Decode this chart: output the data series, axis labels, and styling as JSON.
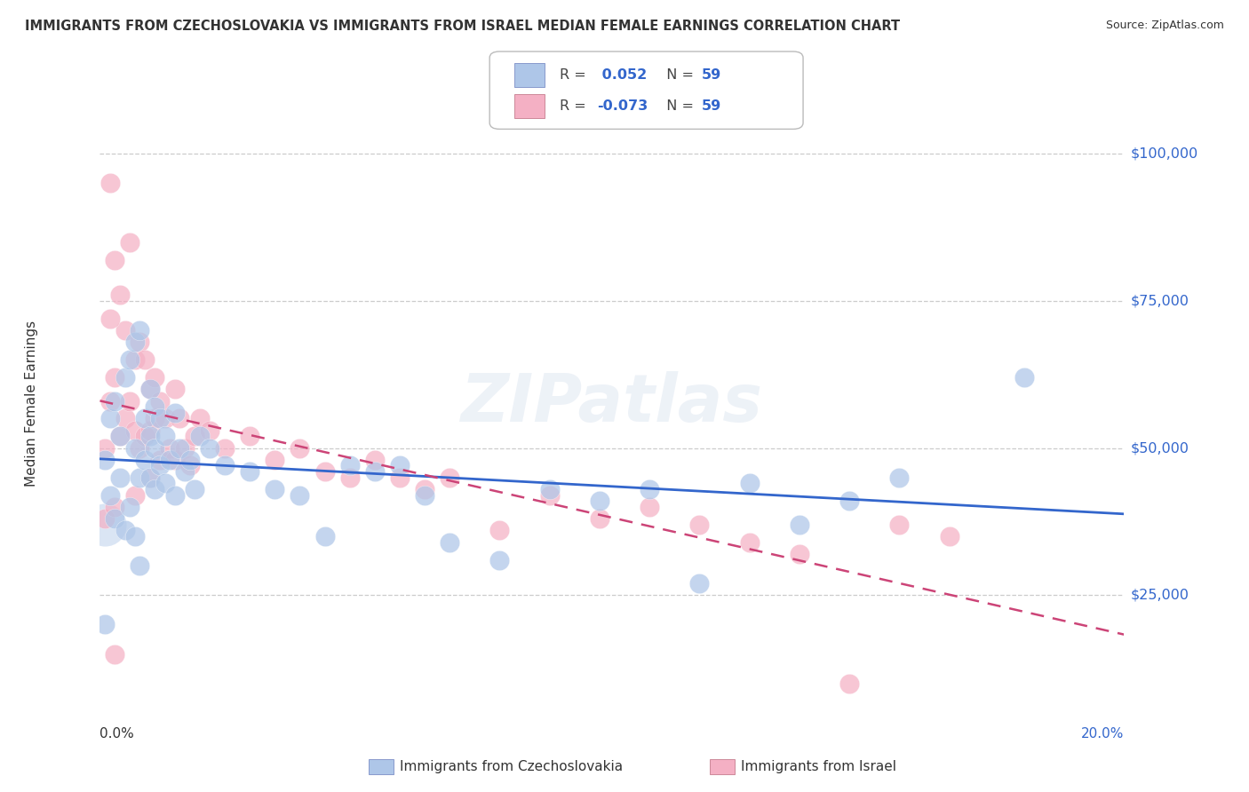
{
  "title": "IMMIGRANTS FROM CZECHOSLOVAKIA VS IMMIGRANTS FROM ISRAEL MEDIAN FEMALE EARNINGS CORRELATION CHART",
  "source": "Source: ZipAtlas.com",
  "ylabel": "Median Female Earnings",
  "yticks": [
    25000,
    50000,
    75000,
    100000
  ],
  "ytick_labels": [
    "$25,000",
    "$50,000",
    "$75,000",
    "$100,000"
  ],
  "xmin": 0.0,
  "xmax": 0.205,
  "ymin": 5000,
  "ymax": 110000,
  "legend_label1": "Immigrants from Czechoslovakia",
  "legend_label2": "Immigrants from Israel",
  "R1": "0.052",
  "R2": "-0.073",
  "N1": "59",
  "N2": "59",
  "color1": "#aec6e8",
  "color2": "#f4b0c4",
  "line_color1": "#3366cc",
  "line_color2": "#cc4477",
  "watermark": "ZIPatlas",
  "background_color": "#ffffff",
  "grid_color": "#cccccc",
  "title_color": "#333333",
  "right_label_color": "#3366cc",
  "czech_x": [
    0.001,
    0.002,
    0.002,
    0.003,
    0.003,
    0.004,
    0.004,
    0.005,
    0.005,
    0.006,
    0.006,
    0.007,
    0.007,
    0.007,
    0.008,
    0.008,
    0.008,
    0.009,
    0.009,
    0.01,
    0.01,
    0.01,
    0.011,
    0.011,
    0.011,
    0.012,
    0.012,
    0.013,
    0.013,
    0.014,
    0.015,
    0.015,
    0.016,
    0.017,
    0.018,
    0.019,
    0.02,
    0.022,
    0.025,
    0.03,
    0.035,
    0.04,
    0.045,
    0.05,
    0.055,
    0.06,
    0.065,
    0.07,
    0.08,
    0.09,
    0.1,
    0.11,
    0.12,
    0.13,
    0.14,
    0.15,
    0.16,
    0.185,
    0.001
  ],
  "czech_y": [
    48000,
    55000,
    42000,
    58000,
    38000,
    52000,
    45000,
    62000,
    36000,
    65000,
    40000,
    68000,
    50000,
    35000,
    70000,
    45000,
    30000,
    55000,
    48000,
    60000,
    52000,
    45000,
    57000,
    50000,
    43000,
    55000,
    47000,
    52000,
    44000,
    48000,
    56000,
    42000,
    50000,
    46000,
    48000,
    43000,
    52000,
    50000,
    47000,
    46000,
    43000,
    42000,
    35000,
    47000,
    46000,
    47000,
    42000,
    34000,
    31000,
    43000,
    41000,
    43000,
    27000,
    44000,
    37000,
    41000,
    45000,
    62000,
    20000
  ],
  "czech_size_big": 1200,
  "israel_x": [
    0.001,
    0.001,
    0.002,
    0.002,
    0.003,
    0.003,
    0.003,
    0.004,
    0.004,
    0.005,
    0.005,
    0.006,
    0.006,
    0.007,
    0.007,
    0.007,
    0.008,
    0.008,
    0.009,
    0.009,
    0.01,
    0.01,
    0.01,
    0.011,
    0.011,
    0.012,
    0.012,
    0.013,
    0.014,
    0.015,
    0.015,
    0.016,
    0.017,
    0.018,
    0.019,
    0.02,
    0.022,
    0.025,
    0.03,
    0.035,
    0.04,
    0.045,
    0.05,
    0.055,
    0.06,
    0.065,
    0.07,
    0.08,
    0.09,
    0.1,
    0.11,
    0.12,
    0.13,
    0.14,
    0.15,
    0.16,
    0.17,
    0.002,
    0.003
  ],
  "israel_y": [
    50000,
    38000,
    95000,
    58000,
    82000,
    62000,
    40000,
    76000,
    52000,
    70000,
    55000,
    85000,
    58000,
    65000,
    53000,
    42000,
    68000,
    50000,
    65000,
    52000,
    60000,
    53000,
    45000,
    62000,
    55000,
    58000,
    48000,
    55000,
    50000,
    60000,
    48000,
    55000,
    50000,
    47000,
    52000,
    55000,
    53000,
    50000,
    52000,
    48000,
    50000,
    46000,
    45000,
    48000,
    45000,
    43000,
    45000,
    36000,
    42000,
    38000,
    40000,
    37000,
    34000,
    32000,
    10000,
    37000,
    35000,
    72000,
    15000
  ]
}
